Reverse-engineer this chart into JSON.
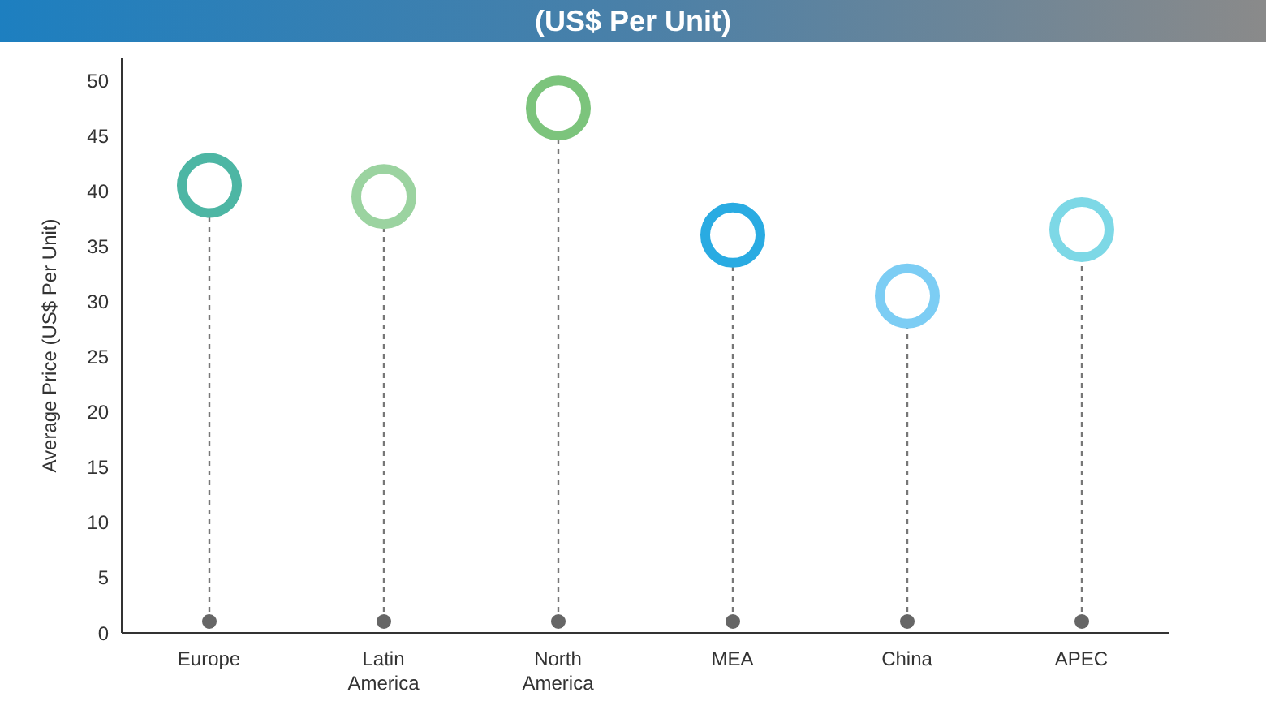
{
  "chart_data": {
    "type": "lollipop",
    "title": "(US$ Per Unit)",
    "ylabel": "Average Price (US$ Per Unit)",
    "categories": [
      "Europe",
      "Latin America",
      "North America",
      "MEA",
      "China",
      "APEC"
    ],
    "values": [
      40.5,
      39.5,
      47.5,
      36,
      30.5,
      36.5
    ],
    "colors": [
      "#4db6a4",
      "#9bd3a0",
      "#7cc47c",
      "#29abe2",
      "#7ccdf4",
      "#7dd8e6"
    ],
    "ylim": [
      0,
      52
    ],
    "yticks": [
      0,
      5,
      10,
      15,
      20,
      25,
      30,
      35,
      40,
      45,
      50
    ],
    "legend": false
  }
}
